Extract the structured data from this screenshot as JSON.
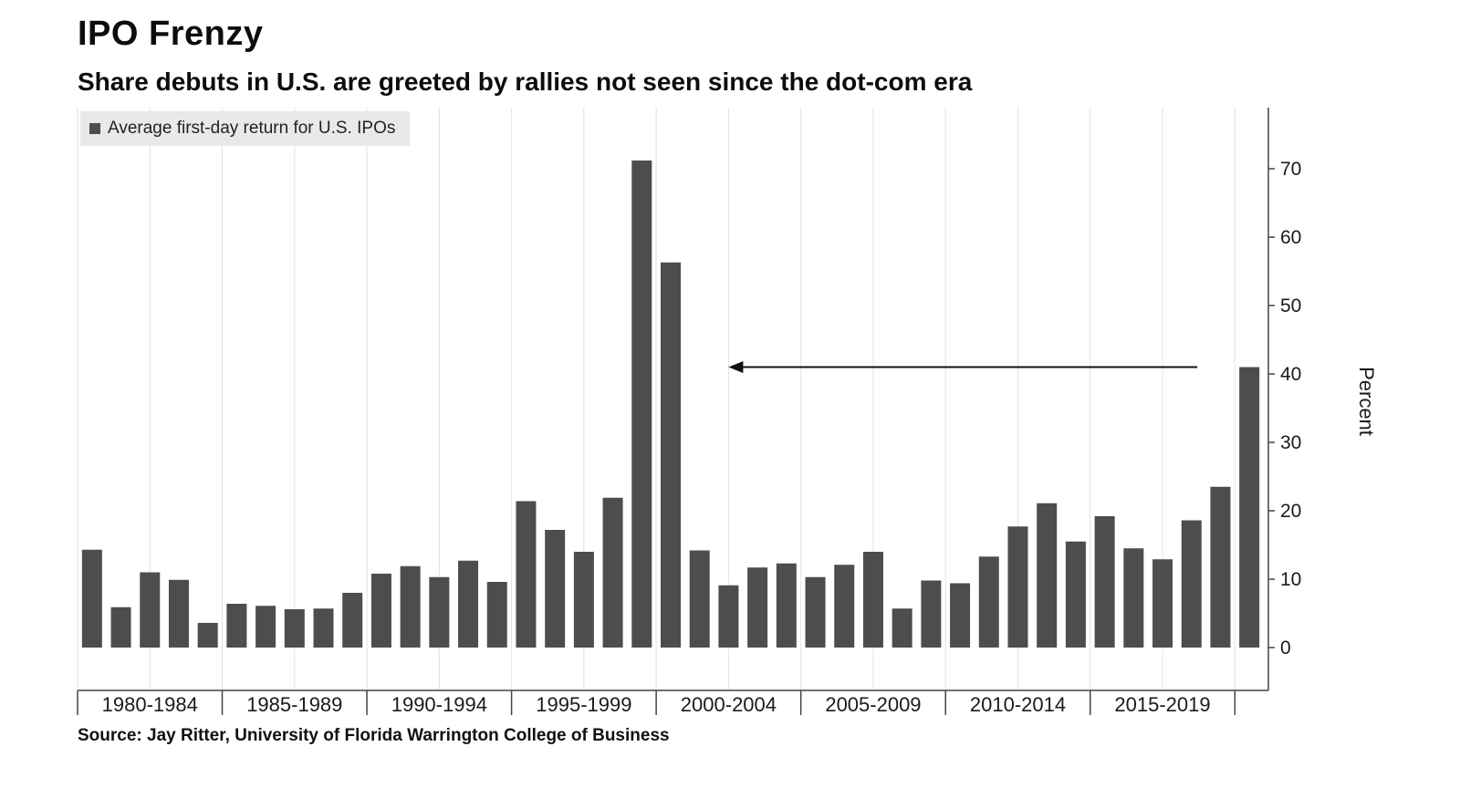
{
  "chart_data": {
    "type": "bar",
    "title": "IPO Frenzy",
    "subtitle": "Share debuts in U.S. are greeted by rallies not seen since the dot-com era",
    "legend": "Average first-day return for U.S. IPOs",
    "source": "Source: Jay Ritter, University of Florida Warrington College of Business",
    "ylabel": "Percent",
    "yticks": [
      0,
      10,
      20,
      30,
      40,
      50,
      60,
      70
    ],
    "ylim": [
      0,
      79
    ],
    "grid": "vertical-light",
    "legend_position": "top-left",
    "bar_color": "#4d4d4d",
    "axis_color": "#444444",
    "grid_color": "#e2e2e2",
    "text_color": "#1a1a1a",
    "years": [
      1980,
      1981,
      1982,
      1983,
      1984,
      1985,
      1986,
      1987,
      1988,
      1989,
      1990,
      1991,
      1992,
      1993,
      1994,
      1995,
      1996,
      1997,
      1998,
      1999,
      2000,
      2001,
      2002,
      2003,
      2004,
      2005,
      2006,
      2007,
      2008,
      2009,
      2010,
      2011,
      2012,
      2013,
      2014,
      2015,
      2016,
      2017,
      2018,
      2019,
      2020
    ],
    "values": [
      14.3,
      5.9,
      11.0,
      9.9,
      3.6,
      6.4,
      6.1,
      5.6,
      5.7,
      8.0,
      10.8,
      11.9,
      10.3,
      12.7,
      9.6,
      21.4,
      17.2,
      14.0,
      21.9,
      71.2,
      56.3,
      14.2,
      9.1,
      11.7,
      12.3,
      10.3,
      12.1,
      14.0,
      5.7,
      9.8,
      9.4,
      13.3,
      17.7,
      21.1,
      15.5,
      19.2,
      14.5,
      12.9,
      18.6,
      23.5,
      41.0
    ],
    "group_size": 5,
    "group_labels": [
      "1980-1984",
      "1985-1989",
      "1990-1994",
      "1995-1999",
      "2000-2004",
      "2005-2009",
      "2010-2014",
      "2015-2019"
    ],
    "annotation_arrow": {
      "y_percent": 41.0,
      "from_year": 2018.2,
      "to_year": 2002.0
    }
  }
}
